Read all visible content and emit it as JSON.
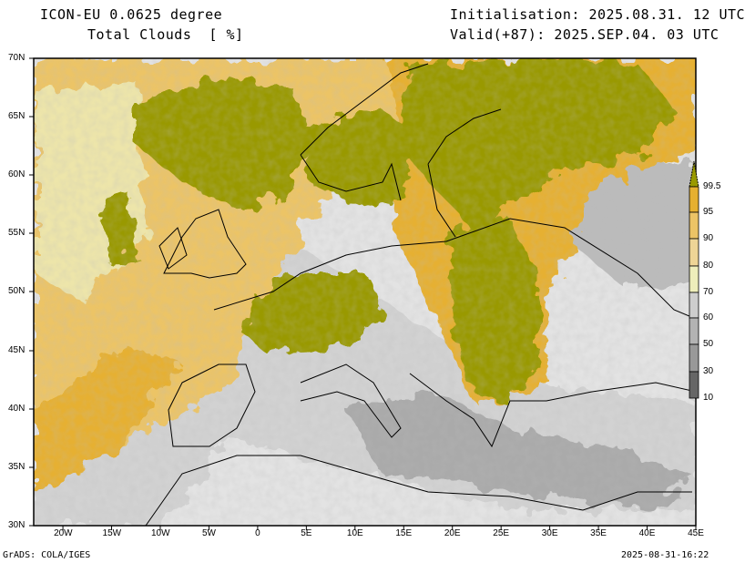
{
  "header": {
    "model": "ICON-EU 0.0625 degree",
    "variable": "Total Clouds  [ %]",
    "initialisation": "Initialisation: 2025.08.31. 12 UTC",
    "valid": "Valid(+87): 2025.SEP.04. 03 UTC"
  },
  "axes": {
    "lat_labels": [
      "70N",
      "65N",
      "60N",
      "55N",
      "50N",
      "45N",
      "40N",
      "35N",
      "30N"
    ],
    "lon_labels": [
      "20W",
      "15W",
      "10W",
      "5W",
      "0",
      "5E",
      "10E",
      "15E",
      "20E",
      "25E",
      "30E",
      "35E",
      "40E",
      "45E"
    ],
    "lon_range": [
      -23,
      45
    ],
    "lat_range": [
      30,
      70
    ]
  },
  "legend": {
    "labels": [
      "99.5",
      "95",
      "90",
      "80",
      "70",
      "60",
      "50",
      "30",
      "10"
    ],
    "colors": [
      "#999900",
      "#e6b030",
      "#ecc466",
      "#eed596",
      "#eeeebb",
      "#cdcdcd",
      "#b3b3b3",
      "#999999",
      "#666666"
    ]
  },
  "footer": {
    "credit": "GrADS: COLA/IGES",
    "timestamp": "2025-08-31-16:22"
  }
}
